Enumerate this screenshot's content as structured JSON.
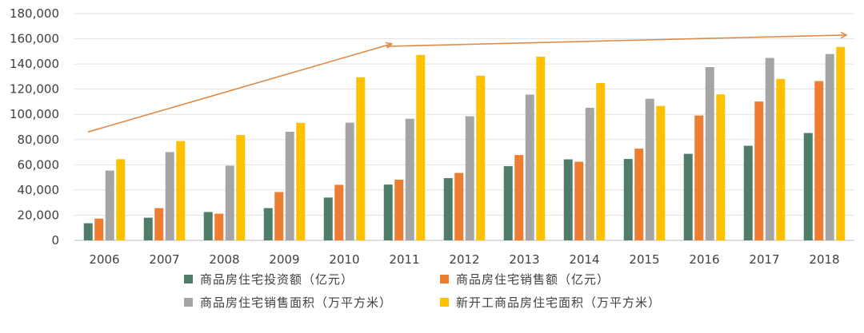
{
  "chart_data": {
    "type": "bar",
    "categories": [
      "2006",
      "2007",
      "2008",
      "2009",
      "2010",
      "2011",
      "2012",
      "2013",
      "2014",
      "2015",
      "2016",
      "2017",
      "2018"
    ],
    "series": [
      {
        "name": "商品房住宅投资额（亿元）",
        "color": "#4f7d6a",
        "values": [
          13600,
          18000,
          22500,
          25600,
          34000,
          44300,
          49400,
          58900,
          64300,
          64600,
          68700,
          75100,
          85200
        ]
      },
      {
        "name": "商品房住宅销售额（亿元）",
        "color": "#ed7d31",
        "values": [
          17300,
          25600,
          21200,
          38400,
          44100,
          48200,
          53500,
          67700,
          62400,
          72800,
          99100,
          110200,
          126400
        ]
      },
      {
        "name": "商品房住宅销售面积（万平方米）",
        "color": "#a5a5a5",
        "values": [
          55400,
          70100,
          59300,
          86200,
          93400,
          96500,
          98500,
          115700,
          105200,
          112400,
          137500,
          144800,
          147900
        ]
      },
      {
        "name": "新开工商品房住宅面积（万平方米）",
        "color": "#ffc000",
        "values": [
          64400,
          78800,
          83600,
          93300,
          129400,
          147200,
          130700,
          145800,
          124900,
          106700,
          115900,
          128100,
          153500
        ]
      }
    ],
    "yticks": [
      "0",
      "20,000",
      "40,000",
      "60,000",
      "80,000",
      "100,000",
      "120,000",
      "140,000",
      "160,000",
      "180,000"
    ],
    "ylim": [
      0,
      180000
    ],
    "trend_arrows": [
      {
        "from": {
          "x": "2006",
          "y": 86000
        },
        "to": {
          "x": "2011",
          "y": 156000
        }
      },
      {
        "from": {
          "x": "2011",
          "y": 154000
        },
        "to": {
          "x": "2018",
          "y": 163000
        }
      }
    ],
    "arrow_color": "#e08a45",
    "grid": true,
    "legend_position": "bottom"
  }
}
